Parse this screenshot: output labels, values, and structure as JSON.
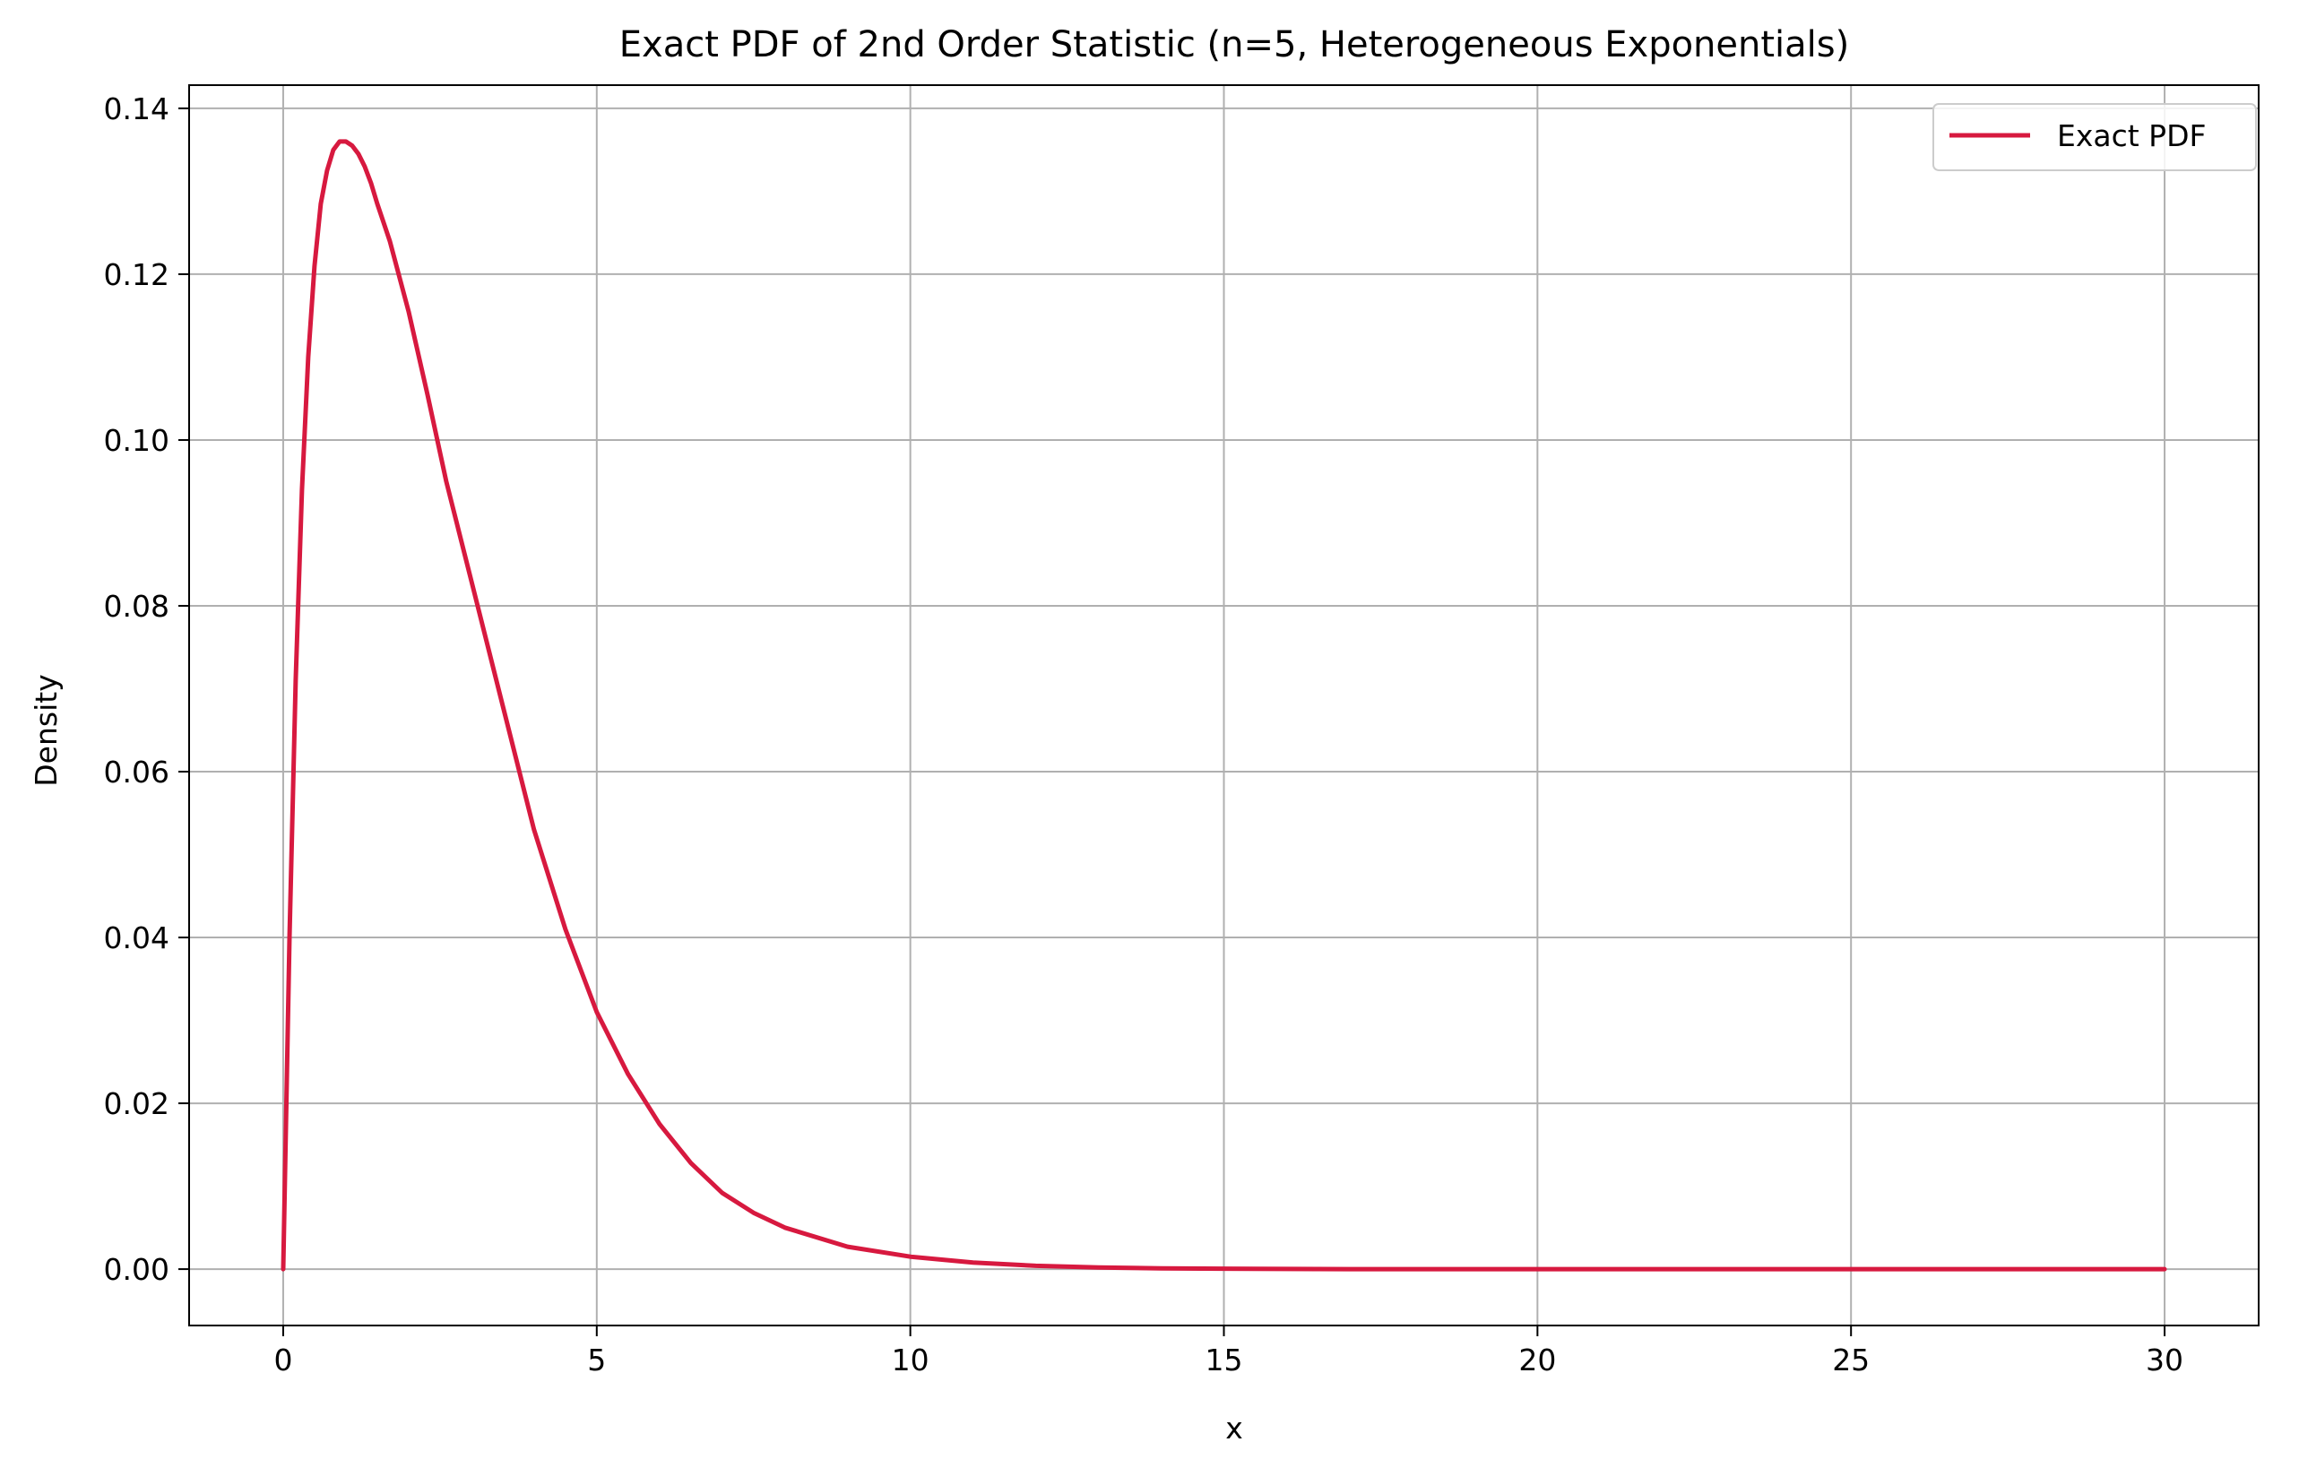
{
  "chart_data": {
    "type": "line",
    "title": "Exact PDF of 2nd Order Statistic (n=5, Heterogeneous Exponentials)",
    "xlabel": "x",
    "ylabel": "Density",
    "xlim": [
      -1.5,
      31.5
    ],
    "ylim": [
      -0.0068,
      0.1428
    ],
    "x_ticks": [
      0,
      5,
      10,
      15,
      20,
      25,
      30
    ],
    "x_tick_labels": [
      "0",
      "5",
      "10",
      "15",
      "20",
      "25",
      "30"
    ],
    "y_ticks": [
      0.0,
      0.02,
      0.04,
      0.06,
      0.08,
      0.1,
      0.12,
      0.14
    ],
    "y_tick_labels": [
      "0.00",
      "0.02",
      "0.04",
      "0.06",
      "0.08",
      "0.10",
      "0.12",
      "0.14"
    ],
    "grid": true,
    "legend_position": "top-right",
    "colors": {
      "series": "#d7193f",
      "grid": "#b0b0b0",
      "axes": "#000000"
    },
    "series": [
      {
        "name": "Exact PDF",
        "x": [
          0,
          0.1,
          0.2,
          0.3,
          0.4,
          0.5,
          0.6,
          0.7,
          0.8,
          0.9,
          1.0,
          1.1,
          1.2,
          1.3,
          1.4,
          1.5,
          1.7,
          2.0,
          2.3,
          2.6,
          3.0,
          3.5,
          4.0,
          4.5,
          5.0,
          5.5,
          6.0,
          6.5,
          7.0,
          7.5,
          8.0,
          9.0,
          10.0,
          11.0,
          12.0,
          13.0,
          14.0,
          15.0,
          17.0,
          20.0,
          25.0,
          30.0
        ],
        "values": [
          0.0,
          0.04,
          0.071,
          0.094,
          0.11,
          0.121,
          0.1285,
          0.1325,
          0.135,
          0.136,
          0.136,
          0.1355,
          0.1345,
          0.133,
          0.131,
          0.1285,
          0.124,
          0.1155,
          0.1055,
          0.095,
          0.083,
          0.068,
          0.053,
          0.041,
          0.031,
          0.0235,
          0.0175,
          0.0128,
          0.0092,
          0.0068,
          0.005,
          0.0027,
          0.0015,
          0.0008,
          0.0004,
          0.0002,
          0.0001,
          5e-05,
          0.0,
          0.0,
          0.0,
          0.0
        ]
      }
    ]
  }
}
